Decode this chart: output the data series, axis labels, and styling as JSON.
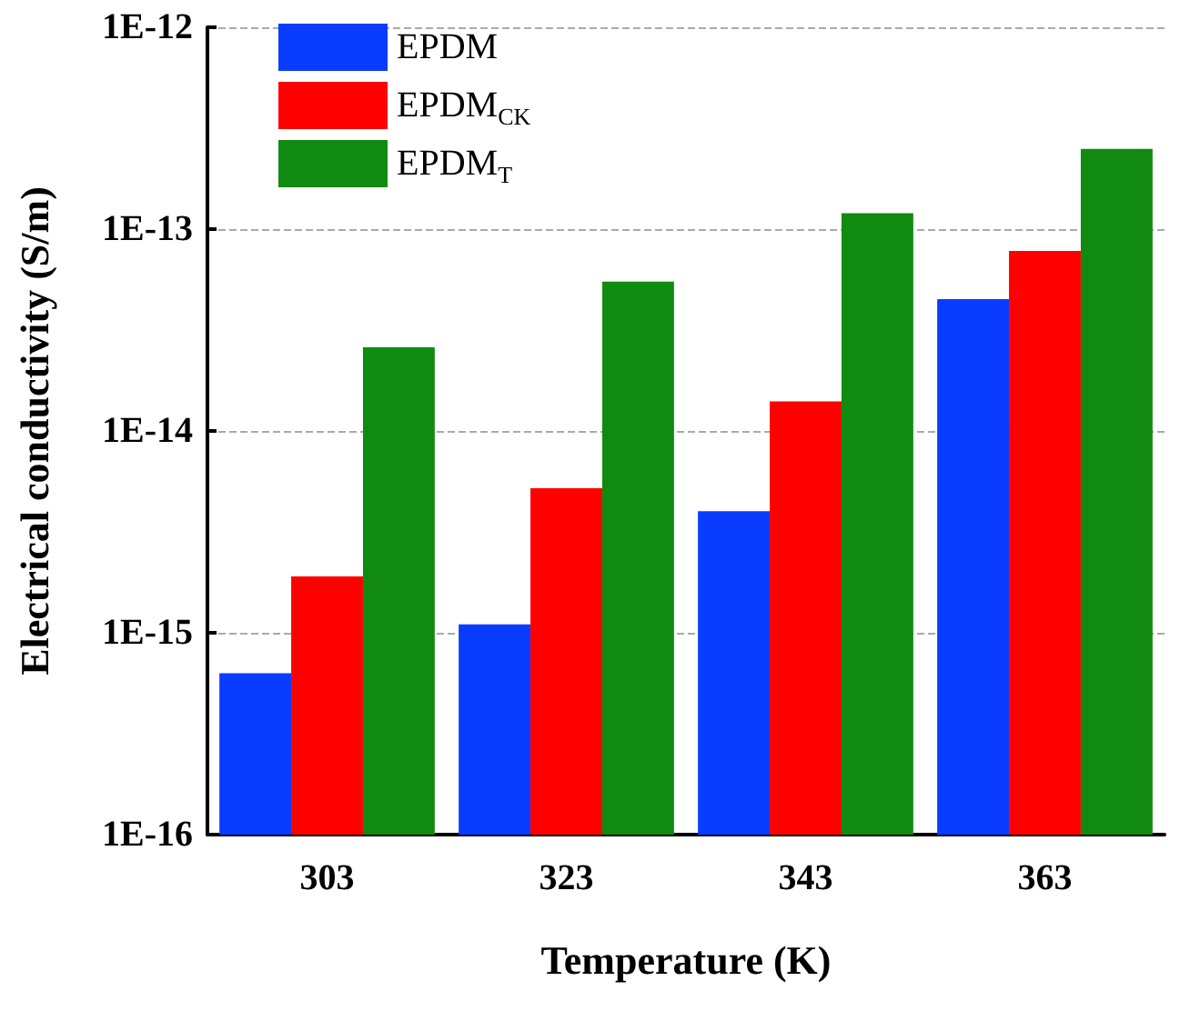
{
  "chart_data": {
    "type": "bar",
    "xlabel": "Temperature (K)",
    "ylabel": "Electrical conductivity (S/m)",
    "categories": [
      "303",
      "323",
      "343",
      "363"
    ],
    "series": [
      {
        "name": "EPDM",
        "color": "#0a3cff",
        "values": [
          6.3e-16,
          1.1e-15,
          4e-15,
          4.5e-14
        ]
      },
      {
        "name": "EPDM$_{CK}$",
        "color": "#ff0000",
        "values": [
          1.9e-15,
          5.2e-15,
          1.4e-14,
          7.8e-14
        ]
      },
      {
        "name": "EPDM$_{T}$",
        "color": "#108a10",
        "values": [
          2.6e-14,
          5.5e-14,
          1.2e-13,
          2.5e-13
        ]
      }
    ],
    "log": "y",
    "ylim": [
      1e-16,
      1e-12
    ],
    "yticks": [
      {
        "value": 1e-16,
        "label": "1E-16"
      },
      {
        "value": 1e-15,
        "label": "1E-15"
      },
      {
        "value": 1e-14,
        "label": "1E-14"
      },
      {
        "value": 1e-13,
        "label": "1E-13"
      },
      {
        "value": 1e-12,
        "label": "1E-12"
      }
    ],
    "grid": "y",
    "legend": "top left"
  }
}
